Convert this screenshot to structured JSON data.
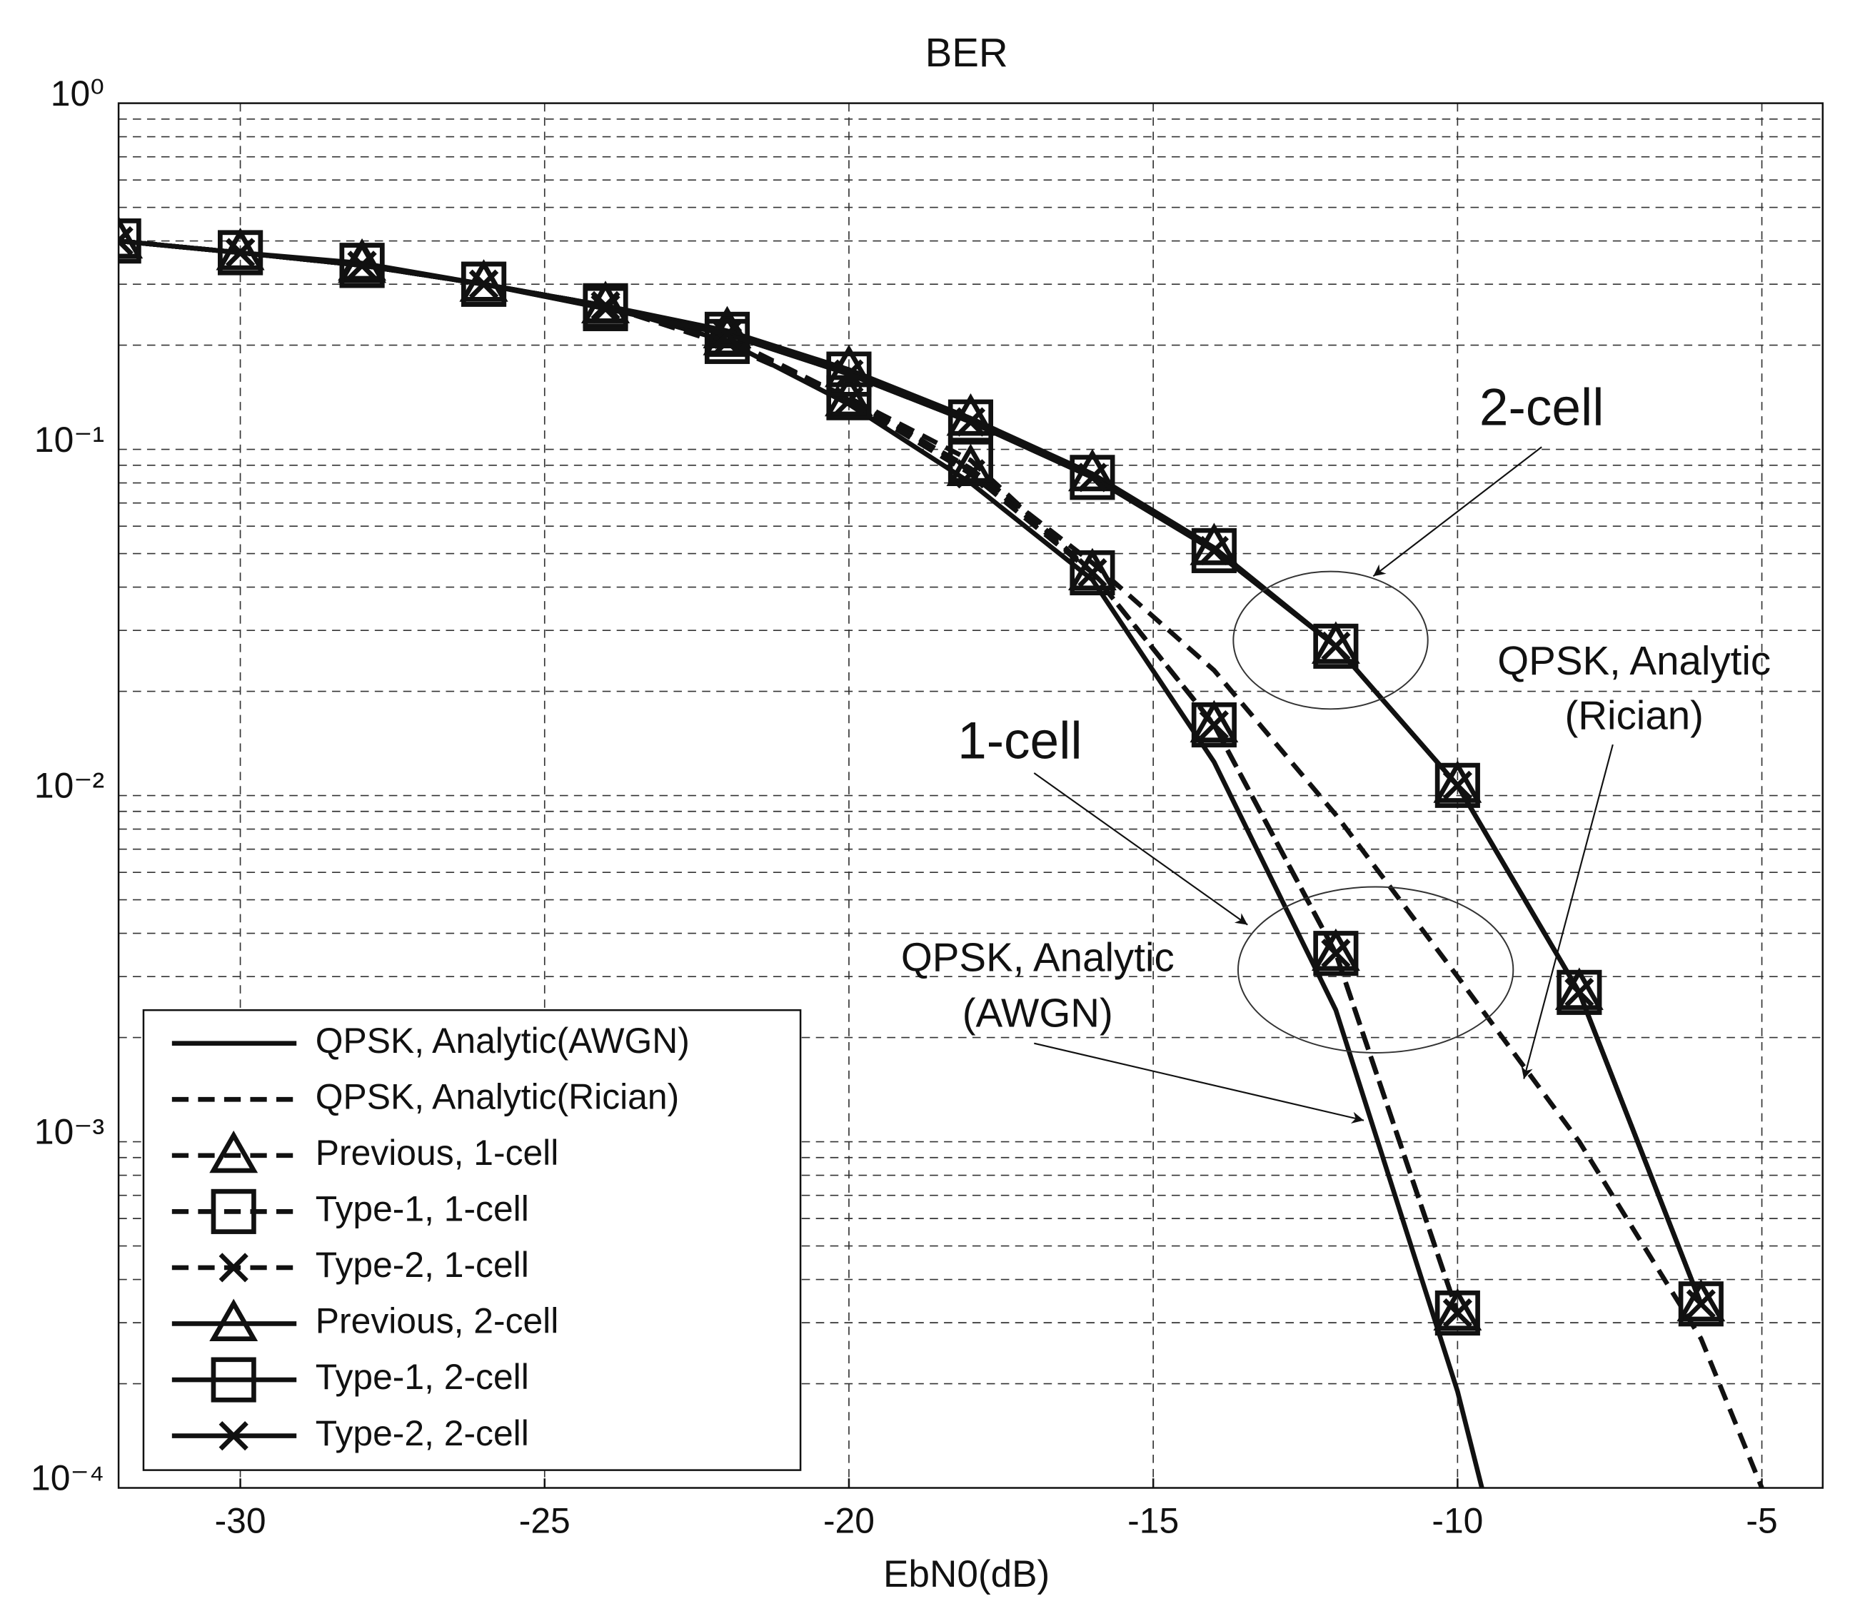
{
  "chart_data": {
    "type": "line",
    "title": "BER",
    "x_label": "EbN0(dB)",
    "log_y": true,
    "grid": true,
    "minor_grid": true,
    "legend_position": "lower left",
    "xlim": [
      -32,
      -4
    ],
    "xticks": [
      -30,
      -25,
      -20,
      -15,
      -10,
      -5
    ],
    "ylim": [
      0.0001,
      1
    ],
    "yticks": [
      {
        "value": 0.0001,
        "label": "10⁻⁴"
      },
      {
        "value": 0.001,
        "label": "10⁻³"
      },
      {
        "value": 0.01,
        "label": "10⁻²"
      },
      {
        "value": 0.1,
        "label": "10⁻¹"
      },
      {
        "value": 1,
        "label": "10⁰"
      }
    ],
    "series": [
      {
        "name": "QPSK, Analytic(AWGN)",
        "color": "#111111",
        "dash": false,
        "marker": null,
        "x": [
          -32,
          -30,
          -28,
          -26,
          -24,
          -22,
          -20,
          -18,
          -16,
          -14,
          -12,
          -10,
          -9.6
        ],
        "values": [
          0.4,
          0.37,
          0.34,
          0.3,
          0.26,
          0.205,
          0.135,
          0.08,
          0.042,
          0.0125,
          0.0024,
          0.00019,
          0.0001
        ]
      },
      {
        "name": "QPSK, Analytic(Rician)",
        "color": "#111111",
        "dash": true,
        "marker": null,
        "x": [
          -32,
          -30,
          -28,
          -26,
          -24,
          -22,
          -20,
          -18,
          -16,
          -14,
          -12,
          -10,
          -8,
          -6,
          -5
        ],
        "values": [
          0.4,
          0.37,
          0.34,
          0.3,
          0.26,
          0.2,
          0.14,
          0.088,
          0.047,
          0.023,
          0.0088,
          0.003,
          0.001,
          0.00027,
          0.0001
        ]
      },
      {
        "name": "Previous, 1-cell",
        "color": "#111111",
        "dash": true,
        "marker": "triangle",
        "x": [
          -32,
          -30,
          -28,
          -26,
          -24,
          -22,
          -20,
          -18,
          -16,
          -14,
          -12,
          -10
        ],
        "values": [
          0.4,
          0.37,
          0.34,
          0.3,
          0.26,
          0.21,
          0.14,
          0.088,
          0.044,
          0.016,
          0.0035,
          0.00032
        ]
      },
      {
        "name": "Type-1, 1-cell",
        "color": "#111111",
        "dash": true,
        "marker": "square",
        "x": [
          -32,
          -30,
          -28,
          -26,
          -24,
          -22,
          -20,
          -18,
          -16,
          -14,
          -12,
          -10
        ],
        "values": [
          0.4,
          0.37,
          0.34,
          0.3,
          0.26,
          0.205,
          0.141,
          0.093,
          0.044,
          0.016,
          0.0035,
          0.00032
        ]
      },
      {
        "name": "Type-2, 1-cell",
        "color": "#111111",
        "dash": true,
        "marker": "x",
        "x": [
          -32,
          -30,
          -28,
          -26,
          -24,
          -22,
          -20,
          -18,
          -16,
          -14,
          -12,
          -10
        ],
        "values": [
          0.4,
          0.37,
          0.34,
          0.3,
          0.26,
          0.205,
          0.138,
          0.085,
          0.044,
          0.016,
          0.0035,
          0.00032
        ]
      },
      {
        "name": "Previous, 2-cell",
        "color": "#111111",
        "dash": false,
        "marker": "triangle",
        "x": [
          -32,
          -30,
          -28,
          -26,
          -24,
          -22,
          -20,
          -18,
          -16,
          -14,
          -12,
          -10,
          -8,
          -6
        ],
        "values": [
          0.4,
          0.37,
          0.345,
          0.3,
          0.26,
          0.22,
          0.17,
          0.123,
          0.085,
          0.052,
          0.027,
          0.0107,
          0.0027,
          0.00034
        ]
      },
      {
        "name": "Type-1, 2-cell",
        "color": "#111111",
        "dash": false,
        "marker": "square",
        "x": [
          -32,
          -30,
          -28,
          -26,
          -24,
          -22,
          -20,
          -18,
          -16,
          -14,
          -12,
          -10,
          -8,
          -6
        ],
        "values": [
          0.4,
          0.37,
          0.34,
          0.3,
          0.255,
          0.215,
          0.165,
          0.12,
          0.083,
          0.051,
          0.027,
          0.0107,
          0.0027,
          0.00034
        ]
      },
      {
        "name": "Type-2, 2-cell",
        "color": "#111111",
        "dash": false,
        "marker": "x",
        "x": [
          -32,
          -30,
          -28,
          -26,
          -24,
          -22,
          -20,
          -18,
          -16,
          -14,
          -12,
          -10,
          -8,
          -6
        ],
        "values": [
          0.4,
          0.37,
          0.34,
          0.3,
          0.255,
          0.215,
          0.165,
          0.12,
          0.083,
          0.051,
          0.027,
          0.0107,
          0.0027,
          0.00034
        ]
      }
    ],
    "annotations": [
      "2-cell",
      "1-cell",
      "QPSK, Analytic",
      "(Rician)",
      "QPSK, Analytic",
      "(AWGN)"
    ]
  }
}
